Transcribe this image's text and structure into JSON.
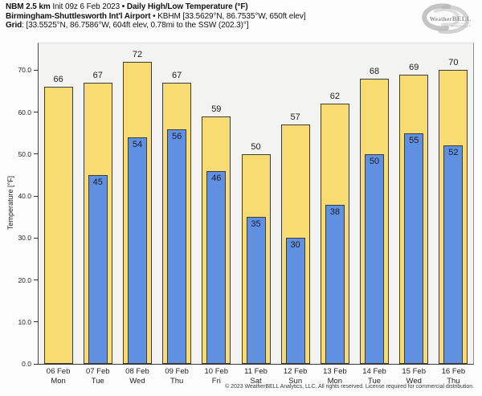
{
  "header": {
    "line1_bold1": "NBM 2.5 km",
    "line1_regular": " Init 09z 6 Feb 2023 ",
    "line1_bold2": "• Daily High/Low Temperature (°F)",
    "line2_bold": "Birmingham-Shuttlesworth Int'l Airport",
    "line2_regular": " • KBHM [33.5629°N, 86.7535°W, 650ft elev]",
    "line3_bold": "Grid",
    "line3_regular": ": [33.5525°N, 86.7586°W, 604ft elev, 0.78mi to the SSW (202.3)°]"
  },
  "logo": {
    "text_weather": "Weather",
    "text_bell": "BELL",
    "subtext": "Analytics LLC"
  },
  "chart_data": {
    "type": "bar",
    "title": "Daily High/Low Temperature (°F)",
    "xlabel": "",
    "ylabel": "Temperature [°F]",
    "ylim": [
      0,
      76.4
    ],
    "yticks": [
      0,
      10,
      20,
      30,
      40,
      50,
      60,
      70
    ],
    "ytick_decimals": 1,
    "grid": false,
    "legend": "none",
    "categories": [
      {
        "date": "06 Feb",
        "day": "Mon"
      },
      {
        "date": "07 Feb",
        "day": "Tue"
      },
      {
        "date": "08 Feb",
        "day": "Wed"
      },
      {
        "date": "09 Feb",
        "day": "Thu"
      },
      {
        "date": "10 Feb",
        "day": "Fri"
      },
      {
        "date": "11 Feb",
        "day": "Sat"
      },
      {
        "date": "12 Feb",
        "day": "Sun"
      },
      {
        "date": "13 Feb",
        "day": "Mon"
      },
      {
        "date": "14 Feb",
        "day": "Tue"
      },
      {
        "date": "15 Feb",
        "day": "Wed"
      },
      {
        "date": "16 Feb",
        "day": "Thu"
      }
    ],
    "series": [
      {
        "name": "High",
        "color": "#f9dc71",
        "values": [
          66,
          67,
          72,
          67,
          59,
          50,
          57,
          62,
          68,
          69,
          70
        ]
      },
      {
        "name": "Low",
        "color": "#6090e2",
        "values": [
          null,
          45,
          54,
          56,
          46,
          35,
          30,
          38,
          50,
          55,
          52
        ]
      }
    ]
  },
  "footer": {
    "copyright": "© 2023 WeatherBELL Analytics, LLC. All rights reserved. License required for commercial distribution."
  },
  "colors": {
    "high_bar": "#f9dc71",
    "low_bar": "#6090e2",
    "bar_border": "#3c3c3c",
    "plot_bg": "#f3f3f2",
    "logo_gray": "#b5b5b5"
  }
}
